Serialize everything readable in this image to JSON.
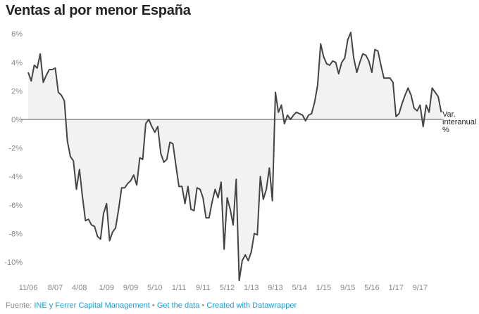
{
  "chart_data": {
    "type": "area",
    "title": "Ventas al por menor España",
    "xlabel": "",
    "ylabel": "",
    "start_month": "11/06",
    "frequency": "monthly",
    "ylim": [
      -11.5,
      6.5
    ],
    "grid": false,
    "y_ticks": [
      6,
      4,
      2,
      0,
      -2,
      -4,
      -6,
      -8,
      -10
    ],
    "y_tick_labels": [
      "6%",
      "4%",
      "2%",
      "0%",
      "-2%",
      "-4%",
      "-6%",
      "-8%",
      "-10%"
    ],
    "x_ticks": [
      {
        "index": 0,
        "label": "11/06"
      },
      {
        "index": 9,
        "label": "8/07"
      },
      {
        "index": 17,
        "label": "4/08"
      },
      {
        "index": 26,
        "label": "1/09"
      },
      {
        "index": 34,
        "label": "9/09"
      },
      {
        "index": 42,
        "label": "5/10"
      },
      {
        "index": 50,
        "label": "1/11"
      },
      {
        "index": 58,
        "label": "9/11"
      },
      {
        "index": 66,
        "label": "5/12"
      },
      {
        "index": 74,
        "label": "1/13"
      },
      {
        "index": 82,
        "label": "9/13"
      },
      {
        "index": 90,
        "label": "5/14"
      },
      {
        "index": 98,
        "label": "1/15"
      },
      {
        "index": 106,
        "label": "9/15"
      },
      {
        "index": 114,
        "label": "5/16"
      },
      {
        "index": 122,
        "label": "1/17"
      },
      {
        "index": 130,
        "label": "9/17"
      }
    ],
    "series": [
      {
        "name": "Var. interanual %",
        "name_lines": [
          "Var.",
          "interanual",
          "%"
        ],
        "color": "#444444",
        "fill": "#f2f2f2",
        "values": [
          3.3,
          2.7,
          3.8,
          3.6,
          4.6,
          2.6,
          3.1,
          3.5,
          3.5,
          3.6,
          1.9,
          1.7,
          1.3,
          -1.5,
          -2.6,
          -2.9,
          -4.9,
          -3.5,
          -5.4,
          -7.1,
          -7.0,
          -7.4,
          -7.5,
          -8.2,
          -8.4,
          -6.6,
          -5.9,
          -8.5,
          -7.9,
          -7.6,
          -6.3,
          -4.8,
          -4.8,
          -4.5,
          -4.3,
          -3.9,
          -4.6,
          -2.7,
          -2.8,
          -0.3,
          0.0,
          -0.5,
          -0.9,
          -0.5,
          -2.4,
          -3.0,
          -2.8,
          -1.6,
          -1.7,
          -3.2,
          -4.7,
          -4.7,
          -5.9,
          -4.7,
          -6.3,
          -6.4,
          -4.8,
          -4.9,
          -5.5,
          -6.9,
          -6.9,
          -5.8,
          -4.9,
          -5.5,
          -4.4,
          -9.1,
          -5.5,
          -6.3,
          -7.4,
          -4.2,
          -11.3,
          -9.9,
          -9.5,
          -9.9,
          -9.3,
          -8.0,
          -8.1,
          -4.0,
          -5.6,
          -4.9,
          -3.4,
          -5.7,
          1.9,
          0.5,
          1.0,
          -0.3,
          0.3,
          0.0,
          0.3,
          0.5,
          0.4,
          0.3,
          -0.1,
          0.3,
          0.4,
          1.2,
          2.4,
          5.3,
          4.4,
          3.9,
          3.8,
          4.1,
          4.0,
          3.2,
          4.0,
          4.3,
          5.6,
          6.1,
          4.3,
          3.3,
          4.0,
          4.6,
          4.5,
          4.1,
          3.3,
          4.9,
          4.8,
          3.8,
          2.9,
          2.9,
          2.9,
          2.6,
          0.2,
          0.4,
          1.1,
          1.7,
          2.2,
          1.7,
          0.8,
          0.6,
          1.0,
          -0.5,
          1.0,
          0.5,
          2.2,
          1.9,
          1.6,
          0.5
        ]
      }
    ]
  },
  "footer": {
    "source_label": "Fuente:",
    "source_link": "INE y Ferrer Capital Management",
    "separator": "•",
    "get_data": "Get the data",
    "created_with": "Created with Datawrapper"
  }
}
